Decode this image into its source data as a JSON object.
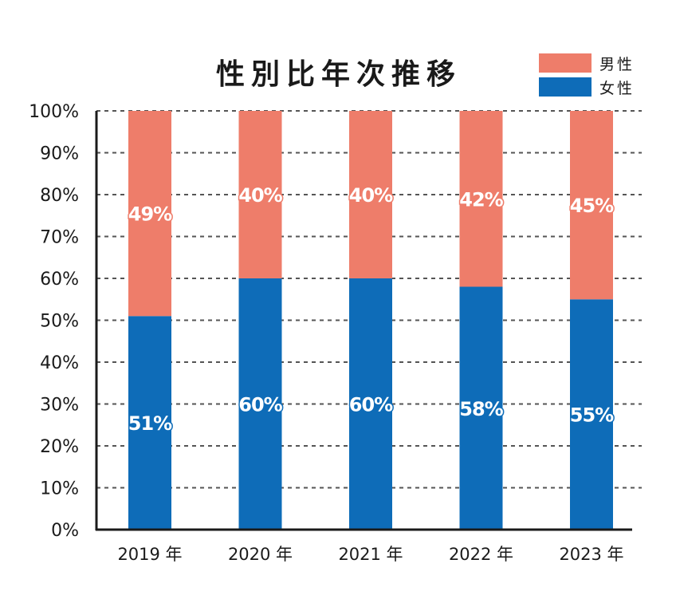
{
  "chart_data": {
    "type": "bar",
    "stacked": true,
    "title": "性別比年次推移",
    "categories": [
      "2019 年",
      "2020 年",
      "2021 年",
      "2022 年",
      "2023 年"
    ],
    "series": [
      {
        "name": "女性",
        "values": [
          51,
          60,
          60,
          58,
          55
        ],
        "labels": [
          "51%",
          "60%",
          "60%",
          "58%",
          "55%"
        ],
        "color": "#0e6cb8"
      },
      {
        "name": "男性",
        "values": [
          49,
          40,
          40,
          42,
          45
        ],
        "labels": [
          "49%",
          "40%",
          "40%",
          "42%",
          "45%"
        ],
        "color": "#ee7d6a"
      }
    ],
    "legend": {
      "position": "top-right",
      "items": [
        {
          "label": "男性",
          "color": "#ee7d6a"
        },
        {
          "label": "女性",
          "color": "#0e6cb8"
        }
      ]
    },
    "yticks": [
      "0%",
      "10%",
      "20%",
      "30%",
      "40%",
      "50%",
      "60%",
      "70%",
      "80%",
      "90%",
      "100%"
    ],
    "ylim": [
      0,
      100
    ],
    "grid": "horizontal dashed",
    "xlabel": "",
    "ylabel": ""
  }
}
